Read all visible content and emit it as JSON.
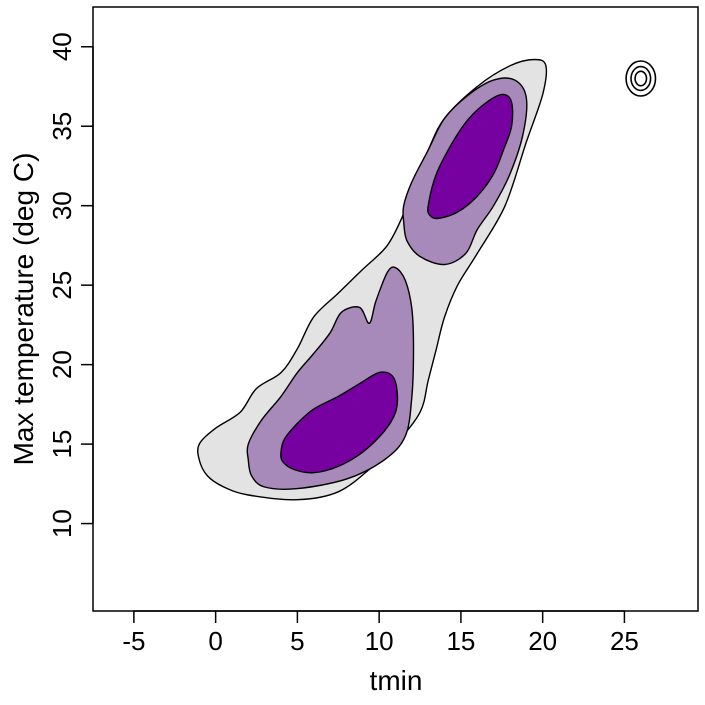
{
  "chart_data": {
    "type": "contour",
    "xlabel": "tmin",
    "ylabel": "Max temperature (deg C)",
    "xlim": [
      -7.5,
      29.5
    ],
    "ylim": [
      4.5,
      42.5
    ],
    "x_ticks": [
      -5,
      0,
      5,
      10,
      15,
      20,
      25
    ],
    "y_ticks": [
      10,
      15,
      20,
      25,
      30,
      35,
      40
    ],
    "grid": false,
    "colors": {
      "outer": "#e3e3e3",
      "middle": "#a78ab9",
      "inner": "#7600a0"
    },
    "regions": [
      {
        "level": "outer",
        "points": [
          [
            -1,
            14
          ],
          [
            -1,
            15
          ],
          [
            0,
            16
          ],
          [
            1.5,
            17
          ],
          [
            2.5,
            18.5
          ],
          [
            4,
            19.5
          ],
          [
            5,
            21
          ],
          [
            6,
            23
          ],
          [
            7.5,
            24.5
          ],
          [
            9,
            26
          ],
          [
            10.5,
            27.5
          ],
          [
            11.5,
            29.5
          ],
          [
            12,
            31
          ],
          [
            13,
            33.5
          ],
          [
            14,
            35.5
          ],
          [
            16,
            37.5
          ],
          [
            18,
            38.8
          ],
          [
            19.5,
            39.2
          ],
          [
            20.2,
            38.8
          ],
          [
            20,
            37
          ],
          [
            19,
            34
          ],
          [
            17.7,
            30
          ],
          [
            16,
            27
          ],
          [
            14.8,
            25
          ],
          [
            14,
            23
          ],
          [
            13.5,
            21
          ],
          [
            13,
            19
          ],
          [
            12.5,
            17
          ],
          [
            11,
            15
          ],
          [
            9.5,
            13.5
          ],
          [
            7.5,
            12
          ],
          [
            5,
            11.5
          ],
          [
            2,
            11.8
          ],
          [
            0.5,
            12.3
          ],
          [
            -0.5,
            13
          ]
        ]
      },
      {
        "level": "middle",
        "points": [
          [
            2,
            14
          ],
          [
            2,
            15
          ],
          [
            2.8,
            16.5
          ],
          [
            4,
            18
          ],
          [
            5,
            19.5
          ],
          [
            6,
            20.7
          ],
          [
            7,
            22
          ],
          [
            7.7,
            23.3
          ],
          [
            8.8,
            23.6
          ],
          [
            9.4,
            22.6
          ],
          [
            9.8,
            24
          ],
          [
            10.5,
            25.8
          ],
          [
            11,
            26.1
          ],
          [
            11.6,
            25.3
          ],
          [
            12,
            23.5
          ],
          [
            12.1,
            21
          ],
          [
            12,
            18
          ],
          [
            11.6,
            15.5
          ],
          [
            10.3,
            14
          ],
          [
            8,
            12.8
          ],
          [
            5,
            12.2
          ],
          [
            3,
            12.3
          ],
          [
            2.2,
            13
          ]
        ]
      },
      {
        "level": "middle",
        "points": [
          [
            11.5,
            29
          ],
          [
            11.5,
            30
          ],
          [
            12,
            31.5
          ],
          [
            13,
            33.5
          ],
          [
            14,
            35.5
          ],
          [
            15.5,
            37
          ],
          [
            17,
            37.9
          ],
          [
            18.3,
            37.9
          ],
          [
            19,
            36.8
          ],
          [
            18.8,
            34.5
          ],
          [
            18,
            32
          ],
          [
            17,
            30
          ],
          [
            16,
            28.5
          ],
          [
            15.3,
            27
          ],
          [
            14,
            26.3
          ],
          [
            12.5,
            26.8
          ],
          [
            11.7,
            27.8
          ]
        ]
      },
      {
        "level": "inner",
        "points": [
          [
            4,
            14.5
          ],
          [
            4.2,
            15.3
          ],
          [
            5,
            16.3
          ],
          [
            6,
            17.2
          ],
          [
            7.5,
            18
          ],
          [
            8.8,
            18.8
          ],
          [
            10,
            19.5
          ],
          [
            10.8,
            19.3
          ],
          [
            11.1,
            18.3
          ],
          [
            11,
            17
          ],
          [
            10.3,
            15.8
          ],
          [
            9,
            14.5
          ],
          [
            7.5,
            13.6
          ],
          [
            6,
            13.2
          ],
          [
            4.8,
            13.4
          ],
          [
            4.1,
            13.9
          ]
        ]
      },
      {
        "level": "inner",
        "points": [
          [
            13,
            30
          ],
          [
            13.5,
            32
          ],
          [
            14.5,
            34
          ],
          [
            15.5,
            35.5
          ],
          [
            16.7,
            36.6
          ],
          [
            17.6,
            37
          ],
          [
            18.1,
            36.5
          ],
          [
            18.1,
            35
          ],
          [
            17.6,
            33.5
          ],
          [
            17,
            32
          ],
          [
            16,
            30.6
          ],
          [
            14.8,
            29.6
          ],
          [
            13.6,
            29.2
          ],
          [
            13.1,
            29.4
          ]
        ]
      }
    ],
    "rings": [
      {
        "cx": 26,
        "cy": 38,
        "rx_data": 0.9,
        "ry_data": 1.1
      },
      {
        "cx": 26,
        "cy": 38,
        "rx_data": 0.6,
        "ry_data": 0.75
      },
      {
        "cx": 26,
        "cy": 38,
        "rx_data": 0.35,
        "ry_data": 0.45
      }
    ]
  }
}
